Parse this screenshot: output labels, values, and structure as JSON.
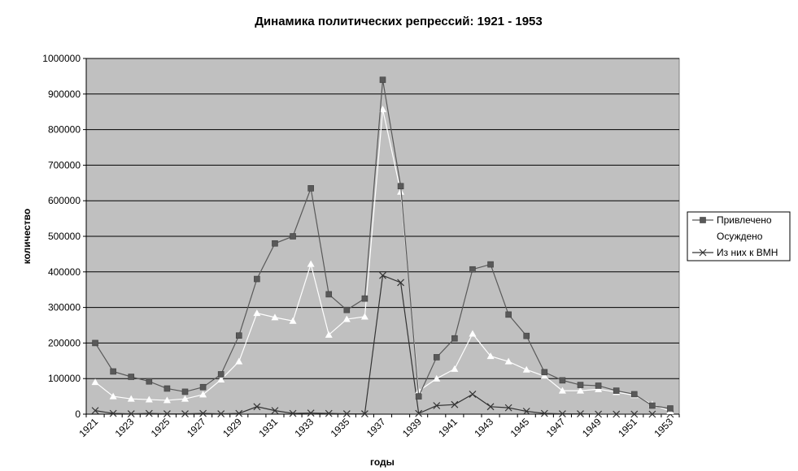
{
  "chart_data": {
    "type": "line",
    "title": "Динамика политических репрессий: 1921 - 1953",
    "xlabel": "годы",
    "ylabel": "количество",
    "x": [
      1921,
      1922,
      1923,
      1924,
      1925,
      1926,
      1927,
      1928,
      1929,
      1930,
      1931,
      1932,
      1933,
      1934,
      1935,
      1936,
      1937,
      1938,
      1939,
      1940,
      1941,
      1942,
      1943,
      1944,
      1945,
      1946,
      1947,
      1948,
      1949,
      1950,
      1951,
      1952,
      1953
    ],
    "x_tick_labels": [
      "1921",
      "1923",
      "1925",
      "1927",
      "1929",
      "1931",
      "1933",
      "1935",
      "1937",
      "1939",
      "1941",
      "1943",
      "1945",
      "1947",
      "1949",
      "1951",
      "1953"
    ],
    "y_tick_labels": [
      "0",
      "100000",
      "200000",
      "300000",
      "400000",
      "500000",
      "600000",
      "700000",
      "800000",
      "900000",
      "1000000"
    ],
    "ylim": [
      0,
      1000000
    ],
    "grid": "horizontal",
    "legend_position": "right",
    "plot_background": "#c0c0c0",
    "series": [
      {
        "name": "Привлечено",
        "marker": "square",
        "color": "#595959",
        "values": [
          200000,
          120000,
          105000,
          92000,
          72000,
          63000,
          76000,
          112000,
          221000,
          380000,
          480000,
          500000,
          635000,
          337000,
          293000,
          325000,
          940000,
          641000,
          50000,
          160000,
          213000,
          407000,
          421000,
          280000,
          220000,
          118000,
          95000,
          82000,
          80000,
          66000,
          56000,
          24000,
          16000
        ]
      },
      {
        "name": "Осуждено",
        "marker": "triangle",
        "color": "#ffffff",
        "values": [
          90000,
          50000,
          43000,
          41000,
          39000,
          43000,
          55000,
          97000,
          148000,
          284000,
          272000,
          262000,
          422000,
          223000,
          267000,
          274000,
          857000,
          625000,
          65000,
          100000,
          127000,
          226000,
          163000,
          148000,
          125000,
          107000,
          66000,
          66000,
          70000,
          62000,
          53000,
          28000,
          8000
        ]
      },
      {
        "name": "Из них к ВМН",
        "marker": "cross",
        "color": "#333333",
        "values": [
          10000,
          2000,
          1000,
          2000,
          1000,
          1000,
          2000,
          1000,
          2000,
          21000,
          10000,
          2000,
          3000,
          2000,
          1000,
          1000,
          390000,
          370000,
          2000,
          24000,
          27000,
          56000,
          21000,
          18000,
          8000,
          2000,
          1000,
          1000,
          0,
          0,
          0,
          0,
          0
        ]
      }
    ]
  }
}
